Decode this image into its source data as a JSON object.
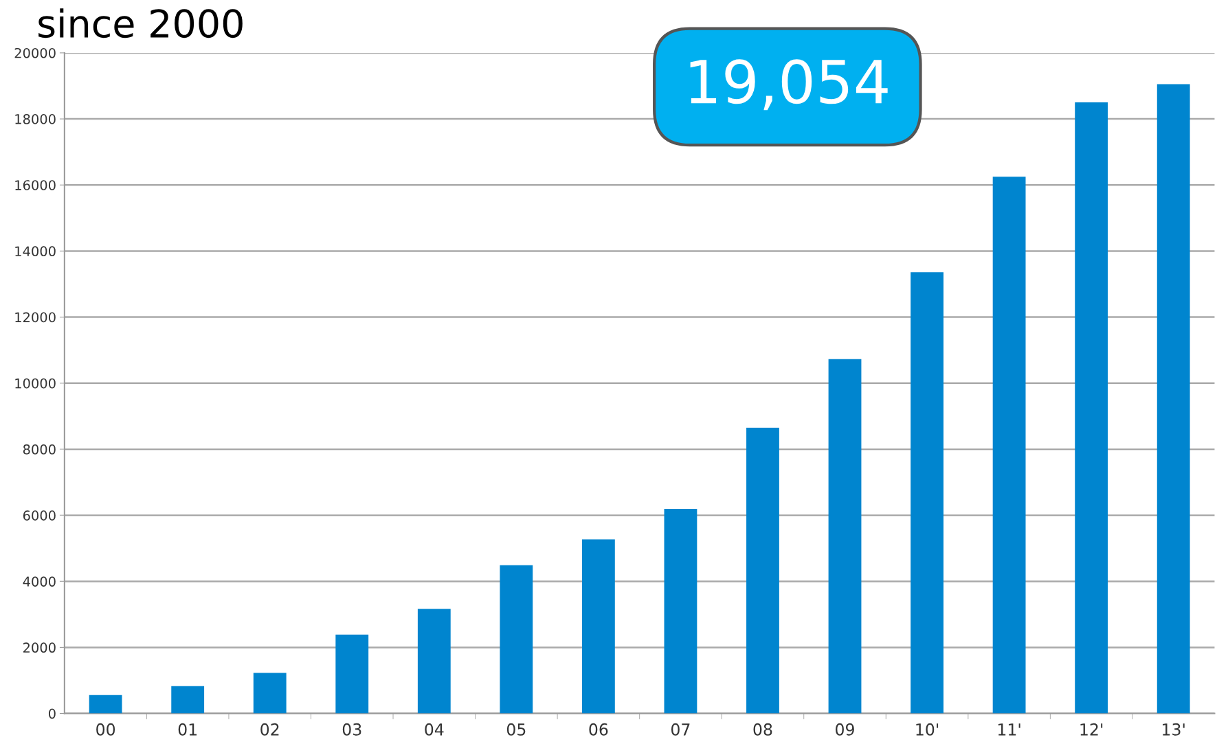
{
  "chart_data": {
    "type": "bar",
    "title": "since 2000",
    "categories": [
      "00",
      "01",
      "02",
      "03",
      "04",
      "05",
      "06",
      "07",
      "08",
      "09",
      "10'",
      "11'",
      "12'",
      "13'"
    ],
    "values": [
      560,
      830,
      1230,
      2390,
      3170,
      4490,
      5270,
      6190,
      8650,
      10730,
      13360,
      16250,
      18500,
      19054
    ],
    "color": "#0085cf",
    "ylim": [
      0,
      20000
    ],
    "yticks": [
      0,
      2000,
      4000,
      6000,
      8000,
      10000,
      12000,
      14000,
      16000,
      18000,
      20000
    ],
    "grid": "y",
    "annotations": [
      "19,054"
    ]
  }
}
